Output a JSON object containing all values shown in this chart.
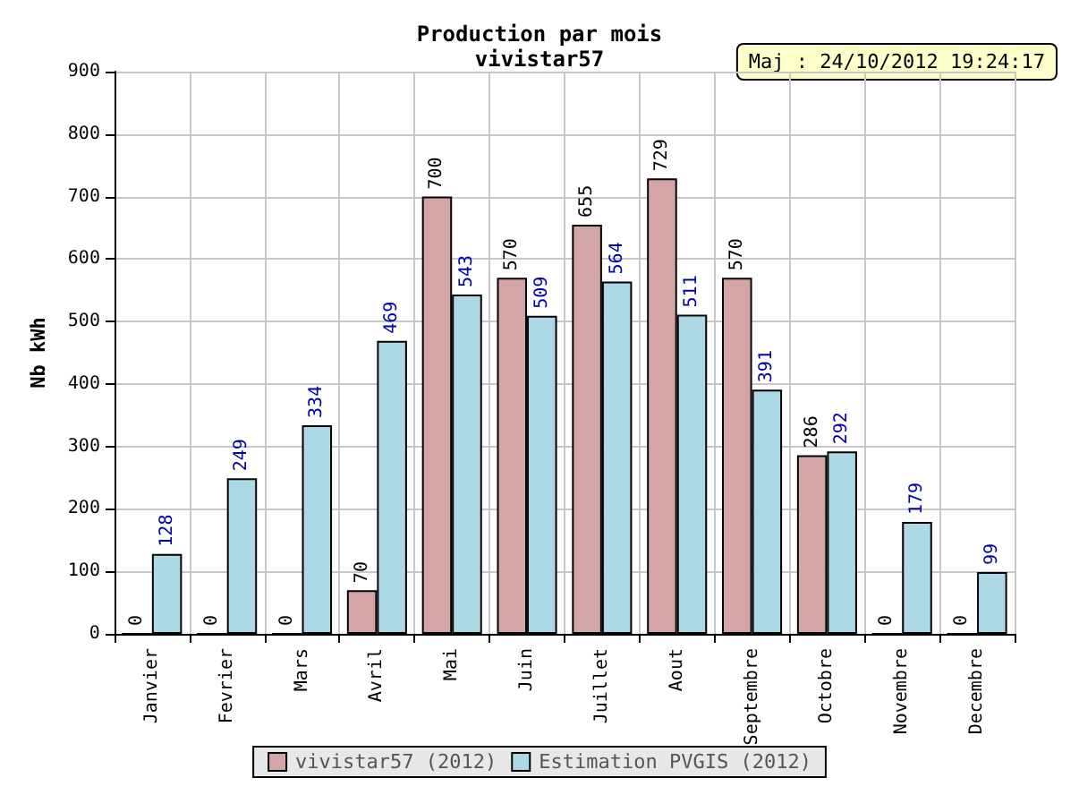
{
  "chart_data": {
    "type": "bar",
    "title": "Production par mois",
    "subtitle": "vivistar57",
    "ylabel": "Nb kWh",
    "categories": [
      "Janvier",
      "Fevrier",
      "Mars",
      "Avril",
      "Mai",
      "Juin",
      "Juillet",
      "Aout",
      "Septembre",
      "Octobre",
      "Novembre",
      "Decembre"
    ],
    "series": [
      {
        "name": "vivistar57 (2012)",
        "color": "#d4a5a5",
        "values": [
          0,
          0,
          0,
          70,
          700,
          570,
          655,
          729,
          570,
          286,
          0,
          0
        ]
      },
      {
        "name": "Estimation PVGIS (2012)",
        "color": "#add8e6",
        "values": [
          128,
          249,
          334,
          469,
          543,
          509,
          564,
          511,
          391,
          292,
          179,
          99
        ]
      }
    ],
    "ylim": [
      0,
      900
    ],
    "yticks": [
      0,
      100,
      200,
      300,
      400,
      500,
      600,
      700,
      800,
      900
    ],
    "grid": true,
    "legend": "bottom",
    "data_labels": true,
    "annotations": [
      "Maj : 24/10/2012 19:24:17"
    ]
  }
}
